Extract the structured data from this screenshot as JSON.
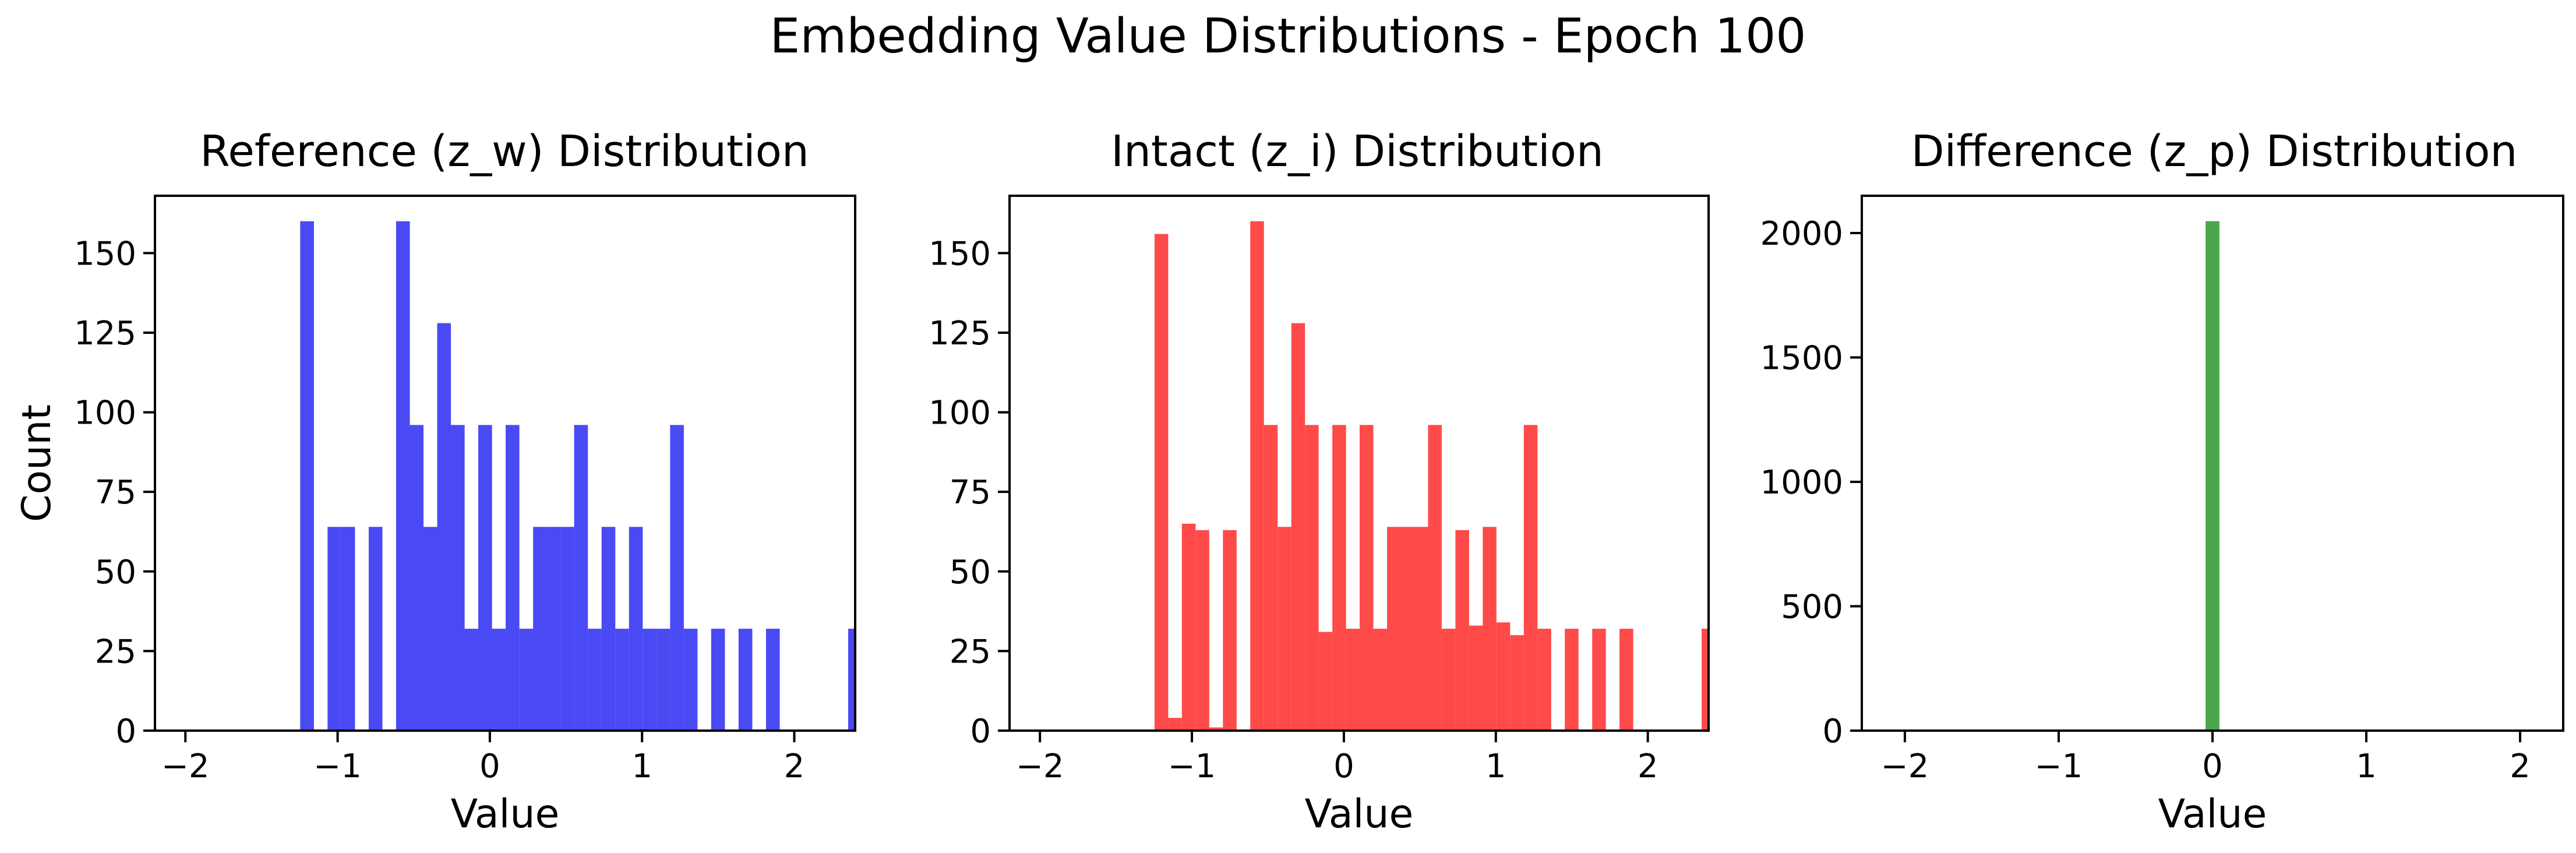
{
  "suptitle": "Embedding Value Distributions - Epoch 100",
  "chart_data": [
    {
      "type": "bar",
      "title": "Reference (z_w) Distribution",
      "xlabel": "Value",
      "ylabel": "Count",
      "xlim": [
        -2.2,
        2.4
      ],
      "ylim": [
        0,
        168
      ],
      "xticks": [
        -2,
        -1,
        0,
        1,
        2
      ],
      "xtick_labels": [
        "−2",
        "−1",
        "0",
        "1",
        "2"
      ],
      "yticks": [
        0,
        25,
        50,
        75,
        100,
        125,
        150
      ],
      "ytick_labels": [
        "0",
        "25",
        "50",
        "75",
        "100",
        "125",
        "150"
      ],
      "bin_width": 0.0902,
      "color": "#4a4af5",
      "series": [
        {
          "bin_starts": [
            -1.246,
            -1.066,
            -0.976,
            -0.796,
            -0.616,
            -0.526,
            -0.436,
            -0.346,
            -0.256,
            -0.166,
            -0.076,
            0.014,
            0.104,
            0.194,
            0.284,
            0.374,
            0.464,
            0.554,
            0.644,
            0.734,
            0.824,
            0.914,
            1.004,
            1.094,
            1.184,
            1.274,
            1.454,
            1.634,
            1.814,
            2.354
          ],
          "values": [
            160,
            64,
            64,
            64,
            160,
            96,
            64,
            128,
            96,
            32,
            96,
            32,
            96,
            32,
            64,
            64,
            64,
            96,
            32,
            64,
            32,
            64,
            32,
            32,
            96,
            32,
            32,
            32,
            32,
            32
          ]
        }
      ]
    },
    {
      "type": "bar",
      "title": "Intact (z_i) Distribution",
      "xlabel": "Value",
      "ylabel": "",
      "xlim": [
        -2.2,
        2.4
      ],
      "ylim": [
        0,
        168
      ],
      "xticks": [
        -2,
        -1,
        0,
        1,
        2
      ],
      "xtick_labels": [
        "−2",
        "−1",
        "0",
        "1",
        "2"
      ],
      "yticks": [
        0,
        25,
        50,
        75,
        100,
        125,
        150
      ],
      "ytick_labels": [
        "0",
        "25",
        "50",
        "75",
        "100",
        "125",
        "150"
      ],
      "bin_width": 0.0902,
      "color": "#ff4a4a",
      "series": [
        {
          "bin_starts": [
            -1.246,
            -1.156,
            -1.066,
            -0.976,
            -0.886,
            -0.796,
            -0.616,
            -0.526,
            -0.436,
            -0.346,
            -0.256,
            -0.166,
            -0.076,
            0.014,
            0.104,
            0.194,
            0.284,
            0.374,
            0.464,
            0.554,
            0.644,
            0.734,
            0.824,
            0.914,
            1.004,
            1.094,
            1.184,
            1.274,
            1.454,
            1.634,
            1.814,
            2.354
          ],
          "values": [
            156,
            4,
            65,
            63,
            1,
            63,
            160,
            96,
            64,
            128,
            96,
            31,
            96,
            32,
            96,
            32,
            64,
            64,
            64,
            96,
            32,
            63,
            33,
            64,
            34,
            30,
            96,
            32,
            32,
            32,
            32,
            32
          ]
        }
      ]
    },
    {
      "type": "bar",
      "title": "Difference (z_p) Distribution",
      "xlabel": "Value",
      "ylabel": "",
      "xlim": [
        -2.28,
        2.28
      ],
      "ylim": [
        0,
        2150
      ],
      "xticks": [
        -2,
        -1,
        0,
        1,
        2
      ],
      "xtick_labels": [
        "−2",
        "−1",
        "0",
        "1",
        "2"
      ],
      "yticks": [
        0,
        500,
        1000,
        1500,
        2000
      ],
      "ytick_labels": [
        "0",
        "500",
        "1000",
        "1500",
        "2000"
      ],
      "bin_width": 0.09,
      "color": "#4ca64c",
      "series": [
        {
          "bin_starts": [
            -0.045
          ],
          "values": [
            2048
          ]
        }
      ]
    }
  ]
}
